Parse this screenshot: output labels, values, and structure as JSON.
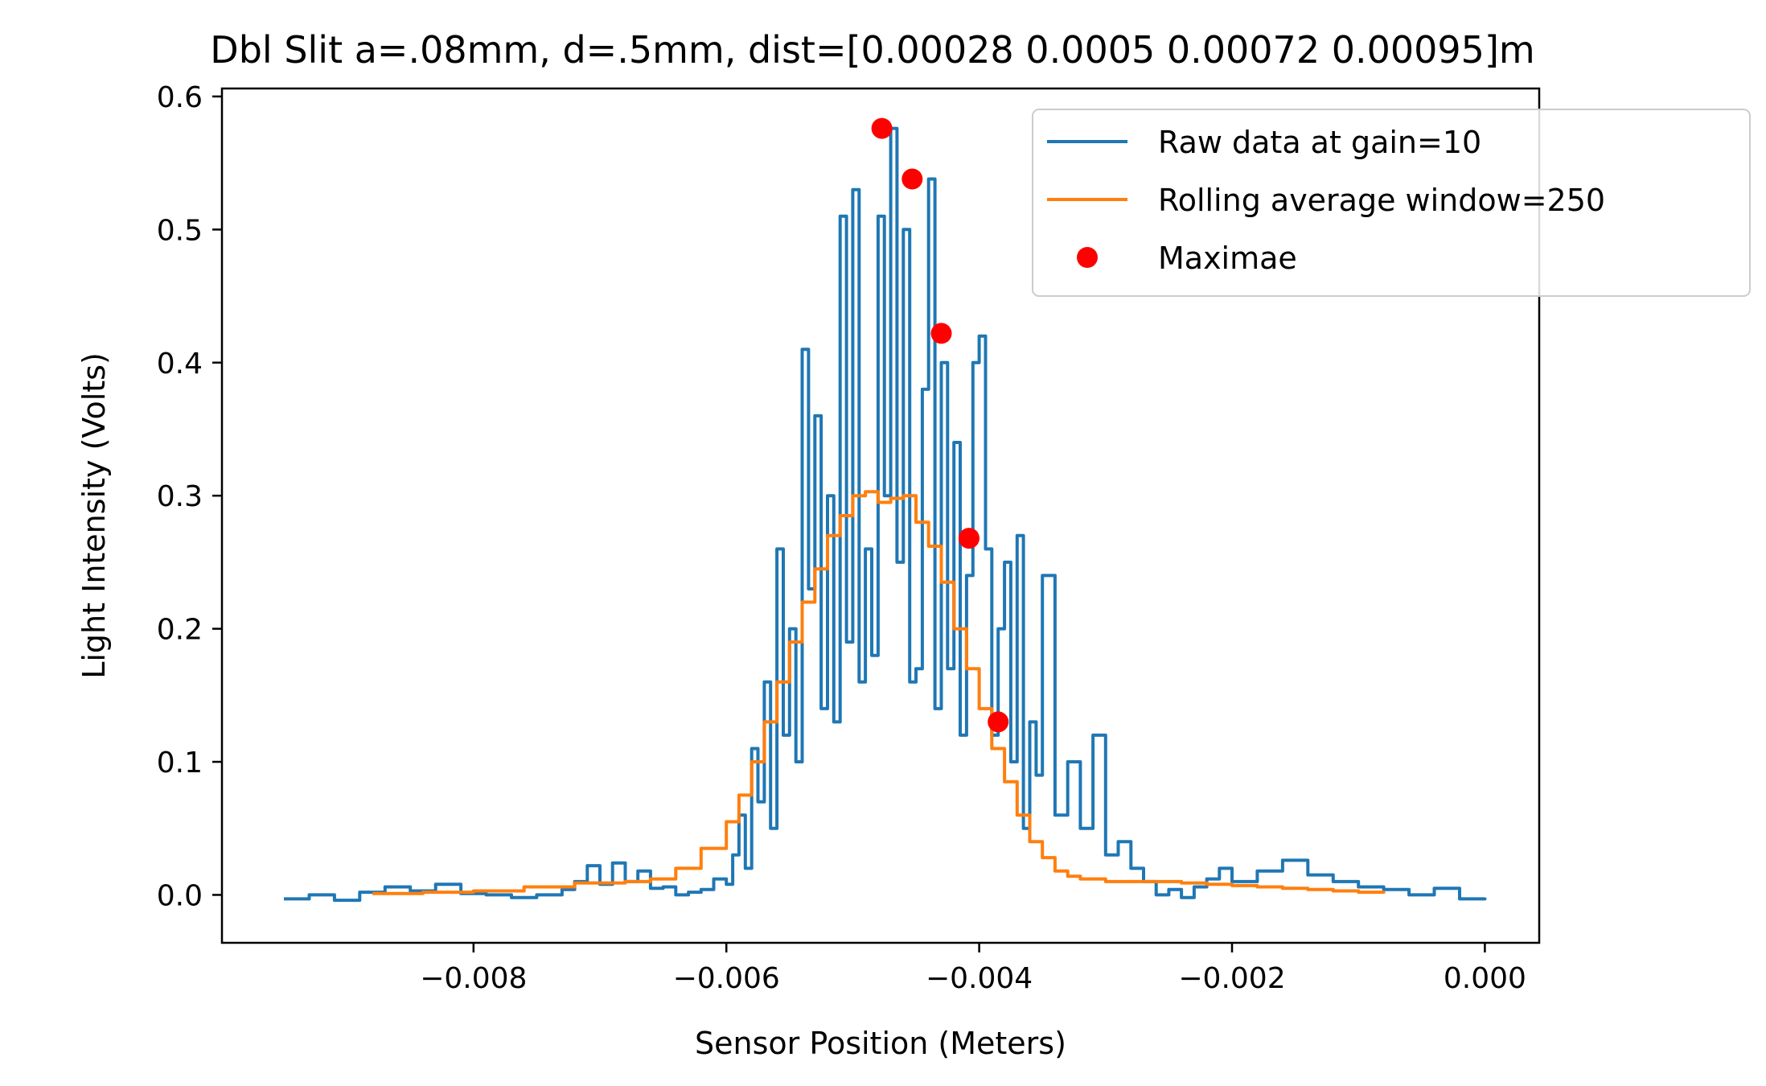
{
  "chart_data": {
    "type": "line",
    "title": "Dbl Slit a=.08mm, d=.5mm, dist=[0.00028 0.0005  0.00072 0.00095]m",
    "xlabel": "Sensor Position (Meters)",
    "ylabel": "Light Intensity (Volts)",
    "xlim": [
      -0.00999,
      0.00043
    ],
    "ylim": [
      -0.036,
      0.606
    ],
    "xticks": [
      -0.008,
      -0.006,
      -0.004,
      -0.002,
      0.0
    ],
    "xtick_labels": [
      "−0.008",
      "−0.006",
      "−0.004",
      "−0.002",
      "0.000"
    ],
    "yticks": [
      0.0,
      0.1,
      0.2,
      0.3,
      0.4,
      0.5,
      0.6
    ],
    "ytick_labels": [
      "0.0",
      "0.1",
      "0.2",
      "0.3",
      "0.4",
      "0.5",
      "0.6"
    ],
    "grid": false,
    "legend_position": "top-right",
    "series": [
      {
        "name": "Raw data at gain=10",
        "color": "#1f77b4",
        "style": "step-line",
        "x": [
          -0.0095,
          -0.0093,
          -0.0091,
          -0.0089,
          -0.0087,
          -0.0085,
          -0.0083,
          -0.0081,
          -0.0079,
          -0.0077,
          -0.0075,
          -0.0073,
          -0.0072,
          -0.0071,
          -0.007,
          -0.0069,
          -0.0068,
          -0.0067,
          -0.0066,
          -0.0065,
          -0.0064,
          -0.0063,
          -0.0062,
          -0.0061,
          -0.006,
          -0.00595,
          -0.0059,
          -0.00585,
          -0.0058,
          -0.00575,
          -0.0057,
          -0.00565,
          -0.0056,
          -0.00555,
          -0.0055,
          -0.00545,
          -0.0054,
          -0.00535,
          -0.0053,
          -0.00525,
          -0.0052,
          -0.00515,
          -0.0051,
          -0.00505,
          -0.005,
          -0.00495,
          -0.0049,
          -0.00485,
          -0.0048,
          -0.00475,
          -0.0047,
          -0.00465,
          -0.0046,
          -0.00455,
          -0.0045,
          -0.00445,
          -0.0044,
          -0.00435,
          -0.0043,
          -0.00425,
          -0.0042,
          -0.00415,
          -0.0041,
          -0.00405,
          -0.004,
          -0.00395,
          -0.0039,
          -0.00385,
          -0.0038,
          -0.00375,
          -0.0037,
          -0.00365,
          -0.0036,
          -0.00355,
          -0.0035,
          -0.0034,
          -0.0033,
          -0.0032,
          -0.0031,
          -0.003,
          -0.0029,
          -0.0028,
          -0.0027,
          -0.0026,
          -0.0025,
          -0.0024,
          -0.0023,
          -0.0022,
          -0.0021,
          -0.002,
          -0.0018,
          -0.0016,
          -0.0014,
          -0.0012,
          -0.001,
          -0.0008,
          -0.0006,
          -0.0004,
          -0.0002,
          0.0
        ],
        "y": [
          -0.003,
          0.0,
          -0.004,
          0.002,
          0.006,
          0.003,
          0.008,
          0.001,
          0.0,
          -0.002,
          0.0,
          0.004,
          0.01,
          0.022,
          0.008,
          0.024,
          0.01,
          0.018,
          0.005,
          0.006,
          0.0,
          0.002,
          0.004,
          0.012,
          0.008,
          0.03,
          0.06,
          0.02,
          0.11,
          0.07,
          0.16,
          0.05,
          0.26,
          0.12,
          0.2,
          0.1,
          0.41,
          0.23,
          0.36,
          0.14,
          0.3,
          0.13,
          0.51,
          0.19,
          0.53,
          0.16,
          0.26,
          0.18,
          0.51,
          0.3,
          0.576,
          0.25,
          0.5,
          0.16,
          0.17,
          0.38,
          0.538,
          0.14,
          0.4,
          0.17,
          0.34,
          0.12,
          0.24,
          0.4,
          0.42,
          0.26,
          0.12,
          0.2,
          0.25,
          0.1,
          0.27,
          0.05,
          0.13,
          0.09,
          0.24,
          0.06,
          0.1,
          0.05,
          0.12,
          0.03,
          0.04,
          0.02,
          0.01,
          0.0,
          0.004,
          -0.002,
          0.006,
          0.012,
          0.02,
          0.01,
          0.018,
          0.026,
          0.015,
          0.01,
          0.006,
          0.004,
          0.0,
          0.005,
          -0.003,
          -0.002
        ]
      },
      {
        "name": "Rolling average window=250",
        "color": "#ff7f0e",
        "style": "step-line",
        "x": [
          -0.0088,
          -0.0084,
          -0.008,
          -0.0076,
          -0.0072,
          -0.0068,
          -0.0066,
          -0.0064,
          -0.0062,
          -0.006,
          -0.0059,
          -0.0058,
          -0.0057,
          -0.0056,
          -0.0055,
          -0.0054,
          -0.0053,
          -0.0052,
          -0.0051,
          -0.005,
          -0.0049,
          -0.0048,
          -0.0047,
          -0.0046,
          -0.0045,
          -0.0044,
          -0.0043,
          -0.0042,
          -0.0041,
          -0.004,
          -0.0039,
          -0.0038,
          -0.0037,
          -0.0036,
          -0.0035,
          -0.0034,
          -0.0033,
          -0.0032,
          -0.003,
          -0.0028,
          -0.0026,
          -0.0024,
          -0.0022,
          -0.002,
          -0.0018,
          -0.0016,
          -0.0014,
          -0.0012,
          -0.001,
          -0.0008
        ],
        "y": [
          0.001,
          0.002,
          0.003,
          0.006,
          0.009,
          0.01,
          0.012,
          0.02,
          0.035,
          0.055,
          0.075,
          0.1,
          0.13,
          0.16,
          0.19,
          0.22,
          0.245,
          0.27,
          0.285,
          0.3,
          0.303,
          0.295,
          0.298,
          0.3,
          0.28,
          0.262,
          0.235,
          0.2,
          0.17,
          0.14,
          0.11,
          0.085,
          0.06,
          0.04,
          0.028,
          0.018,
          0.014,
          0.012,
          0.01,
          0.01,
          0.01,
          0.009,
          0.008,
          0.007,
          0.006,
          0.005,
          0.004,
          0.003,
          0.002,
          0.001
        ]
      },
      {
        "name": "Maximae",
        "color": "#ff0000",
        "style": "markers",
        "x": [
          -0.00477,
          -0.00453,
          -0.0043,
          -0.00408,
          -0.00385
        ],
        "y": [
          0.576,
          0.538,
          0.422,
          0.268,
          0.13
        ]
      }
    ]
  }
}
